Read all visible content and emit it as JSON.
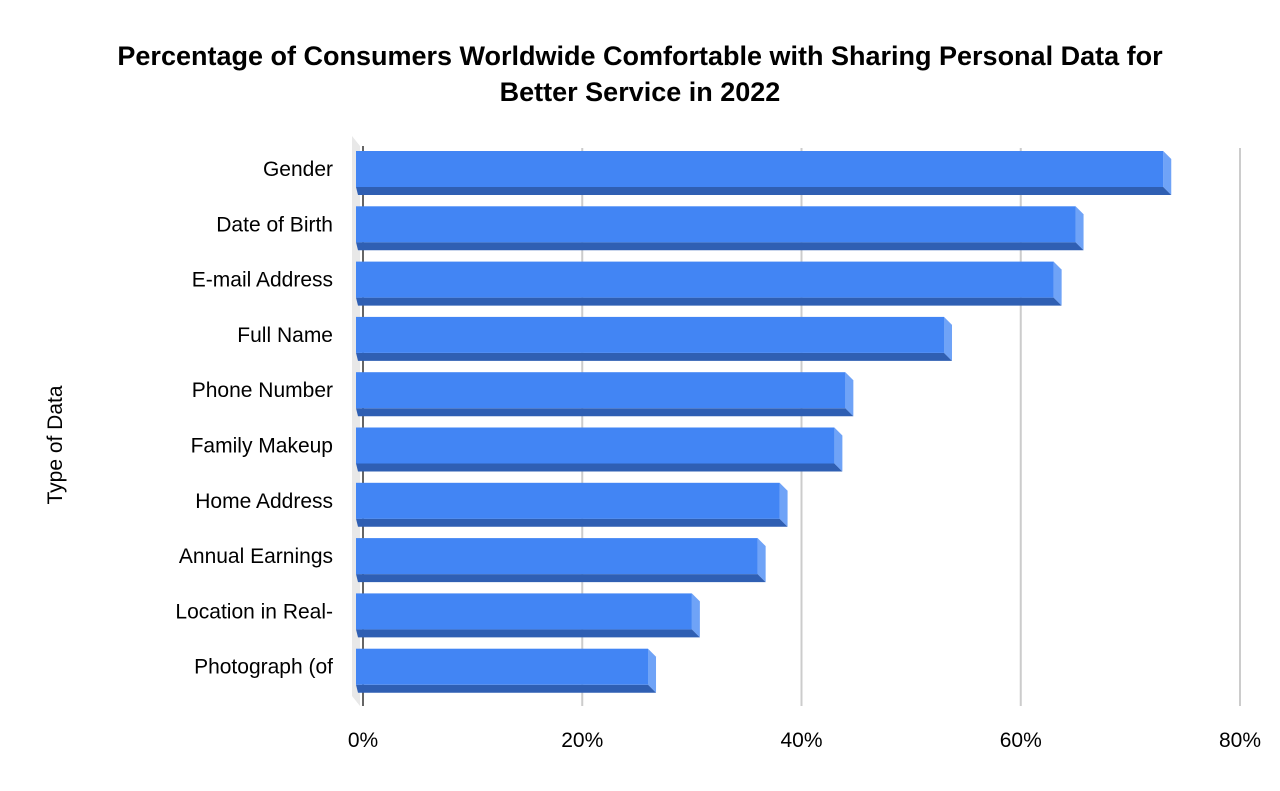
{
  "chart_data": {
    "type": "bar",
    "orientation": "horizontal",
    "style": "3d",
    "title_lines": [
      "Percentage of Consumers Worldwide Comfortable with Sharing Personal Data for",
      "Better Service in 2022"
    ],
    "ylabel": "Type of Data",
    "xlabel": "",
    "categories": [
      "Gender",
      "Date of Birth",
      "E-mail Address",
      "Full Name",
      "Phone Number",
      "Family Makeup",
      "Home Address",
      "Annual Earnings",
      "Location in Real-",
      "Photograph (of"
    ],
    "values": [
      73,
      65,
      63,
      53,
      44,
      43,
      38,
      36,
      30,
      26
    ],
    "xlim": [
      0,
      80
    ],
    "x_ticks": [
      0,
      20,
      40,
      60,
      80
    ],
    "x_tick_labels": [
      "0%",
      "20%",
      "40%",
      "60%",
      "80%"
    ],
    "grid": true,
    "legend": "none",
    "colors": {
      "bar_face": "#4285f4",
      "bar_bottom": "#2f5fb3",
      "bar_side": "#6fa3f7",
      "grid": "#cccccc",
      "wall": "#e8e8e8",
      "axis": "#333333"
    }
  }
}
